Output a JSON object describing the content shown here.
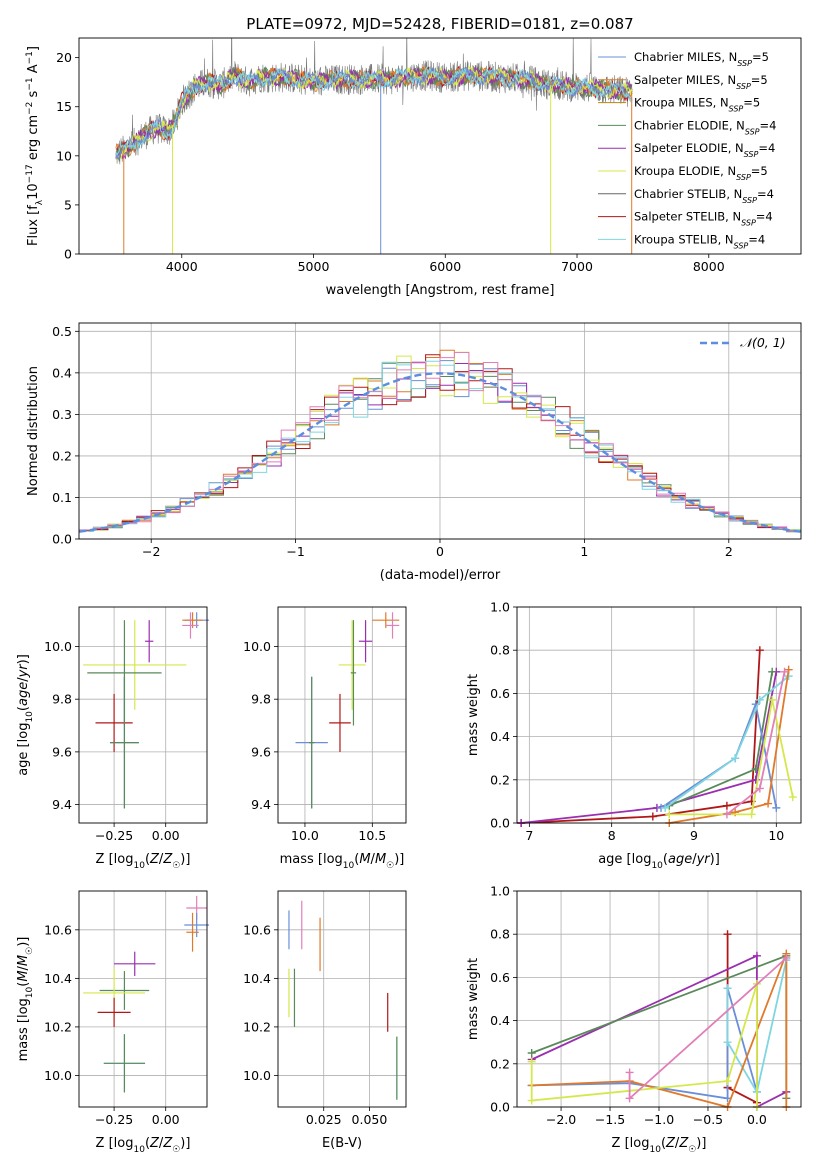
{
  "figure_title": "PLATE=0972, MJD=52428, FIBERID=0181, z=0.087",
  "colors": {
    "Chabrier MILES": "#6a8fd8",
    "Salpeter MILES": "#e07a2a",
    "Kroupa MILES": "#b8860b",
    "Chabrier ELODIE": "#5a8a5a",
    "Salpeter ELODIE": "#9a2fb0",
    "Kroupa ELODIE": "#d4e84a",
    "Chabrier STELIB": "#666666",
    "Salpeter STELIB": "#b01818",
    "Kroupa STELIB": "#7fd6e0",
    "pink": "#e07fb8",
    "gauss": "#5b8fde"
  },
  "chart_data": [
    {
      "id": "spectrum",
      "type": "line",
      "xlabel": "wavelength [Angstrom, rest frame]",
      "ylabel": "Flux [f_λ10^-17 erg cm^-2 s^-1 A^-1]",
      "xlim": [
        3220,
        8700
      ],
      "ylim": [
        0,
        22
      ],
      "xticks": [
        4000,
        5000,
        6000,
        7000,
        8000
      ],
      "yticks": [
        0,
        5,
        10,
        15,
        20
      ],
      "grid": false,
      "legend": "upper right",
      "legend_entries": [
        {
          "label": "Chabrier MILES, N",
          "sub": "SSP",
          "tail": "=5",
          "color": "#6a8fd8"
        },
        {
          "label": "Salpeter MILES, N",
          "sub": "SSP",
          "tail": "=5",
          "color": "#e07a2a"
        },
        {
          "label": "Kroupa MILES, N",
          "sub": "SSP",
          "tail": "=5",
          "color": "#b8860b"
        },
        {
          "label": "Chabrier ELODIE, N",
          "sub": "SSP",
          "tail": "=4",
          "color": "#5a8a5a"
        },
        {
          "label": "Salpeter ELODIE, N",
          "sub": "SSP",
          "tail": "=4",
          "color": "#9a2fb0"
        },
        {
          "label": "Kroupa ELODIE, N",
          "sub": "SSP",
          "tail": "=5",
          "color": "#d4e84a"
        },
        {
          "label": "Chabrier STELIB, N",
          "sub": "SSP",
          "tail": "=4",
          "color": "#666666"
        },
        {
          "label": "Salpeter STELIB, N",
          "sub": "SSP",
          "tail": "=4",
          "color": "#b01818"
        },
        {
          "label": "Kroupa STELIB, N",
          "sub": "SSP",
          "tail": "=4",
          "color": "#7fd6e0"
        }
      ],
      "continuum": {
        "x": [
          3500,
          3550,
          3600,
          3700,
          3800,
          3900,
          3950,
          4000,
          4100,
          4200,
          4300,
          4400,
          4500,
          4600,
          4800,
          5000,
          5200,
          5400,
          5600,
          5800,
          6000,
          6200,
          6400,
          6600,
          6800,
          7000,
          7200,
          7400
        ],
        "y": [
          10.2,
          10.5,
          10.8,
          12.0,
          12.8,
          12.5,
          13.5,
          15.5,
          17.0,
          17.5,
          17.2,
          18.2,
          17.5,
          18.0,
          18.0,
          17.5,
          17.8,
          17.8,
          17.8,
          18.2,
          18.0,
          18.2,
          18.0,
          17.8,
          17.2,
          17.0,
          16.8,
          16.5
        ]
      }
    },
    {
      "id": "residuals",
      "type": "step",
      "xlabel": "(data-model)/error",
      "ylabel": "Normed distribution",
      "xlim": [
        -2.5,
        2.5
      ],
      "ylim": [
        0,
        0.52
      ],
      "xticks": [
        -2,
        -1,
        0,
        1,
        2
      ],
      "xtick_labels": [
        "−2",
        "−1",
        "0",
        "1",
        "2"
      ],
      "yticks": [
        0,
        0.1,
        0.2,
        0.3,
        0.4,
        0.5
      ],
      "ytick_labels": [
        "0.0",
        "0.1",
        "0.2",
        "0.3",
        "0.4",
        "0.5"
      ],
      "grid": true,
      "legend": "upper right",
      "legend_label": "𝒩(0, 1)",
      "bin_width": 0.1
    },
    {
      "id": "age_vs_Z",
      "type": "errorbar",
      "xlabel": "Z [log10(Z/Z☉)]",
      "ylabel": "age  [log10(age/yr)]",
      "xlim": [
        -0.42,
        0.2
      ],
      "ylim": [
        9.33,
        10.15
      ],
      "xticks": [
        -0.25,
        0.0
      ],
      "xtick_labels": [
        "−0.25",
        "0.00"
      ],
      "yticks": [
        9.4,
        9.6,
        9.8,
        10.0
      ],
      "ytick_labels": [
        "9.4",
        "9.6",
        "9.8",
        "10.0"
      ],
      "grid": true,
      "points": [
        {
          "x": 0.15,
          "xe": 0.06,
          "y": 10.1,
          "ye": 0.03,
          "color": "#6a8fd8"
        },
        {
          "x": 0.13,
          "xe": 0.05,
          "y": 10.1,
          "ye": 0.03,
          "color": "#e07a2a"
        },
        {
          "x": 0.12,
          "xe": 0.04,
          "y": 10.08,
          "ye": 0.05,
          "color": "#e07fb8"
        },
        {
          "x": -0.08,
          "xe": 0.02,
          "y": 10.02,
          "ye": 0.08,
          "color": "#9a2fb0"
        },
        {
          "x": -0.15,
          "xe": 0.25,
          "y": 9.93,
          "ye": 0.17,
          "color": "#d4e84a"
        },
        {
          "x": -0.2,
          "xe": 0.18,
          "y": 9.9,
          "ye": 0.2,
          "color": "#5a8a5a"
        },
        {
          "x": -0.25,
          "xe": 0.09,
          "y": 9.71,
          "ye": 0.11,
          "color": "#b01818"
        },
        {
          "x": -0.2,
          "xe": 0.07,
          "y": 9.635,
          "ye": 0.25,
          "color": "#6a8fd8"
        },
        {
          "x": -0.2,
          "xe": 0.07,
          "y": 9.635,
          "ye": 0.25,
          "color": "#5a8a5a"
        }
      ]
    },
    {
      "id": "age_vs_mass",
      "type": "errorbar",
      "xlabel": "mass [log10(M/M☉)]",
      "ylabel": "",
      "xlim": [
        9.8,
        10.75
      ],
      "ylim": [
        9.33,
        10.15
      ],
      "xticks": [
        10.0,
        10.5
      ],
      "xtick_labels": [
        "10.0",
        "10.5"
      ],
      "yticks": [
        9.4,
        9.6,
        9.8,
        10.0
      ],
      "ytick_labels": [
        "9.4",
        "9.6",
        "9.8",
        "10.0"
      ],
      "grid": true,
      "points": [
        {
          "x": 10.6,
          "xe": 0.1,
          "y": 10.1,
          "ye": 0.03,
          "color": "#e07a2a"
        },
        {
          "x": 10.65,
          "xe": 0.05,
          "y": 10.08,
          "ye": 0.05,
          "color": "#e07fb8"
        },
        {
          "x": 10.45,
          "xe": 0.05,
          "y": 10.02,
          "ye": 0.08,
          "color": "#9a2fb0"
        },
        {
          "x": 10.35,
          "xe": 0.1,
          "y": 9.93,
          "ye": 0.17,
          "color": "#d4e84a"
        },
        {
          "x": 10.36,
          "xe": 0.02,
          "y": 9.9,
          "ye": 0.2,
          "color": "#5a8a5a"
        },
        {
          "x": 10.26,
          "xe": 0.08,
          "y": 9.71,
          "ye": 0.11,
          "color": "#b01818"
        },
        {
          "x": 10.05,
          "xe": 0.12,
          "y": 9.635,
          "ye": 0.25,
          "color": "#6a8fd8"
        },
        {
          "x": 10.05,
          "xe": 0.02,
          "y": 9.635,
          "ye": 0.25,
          "color": "#5a8a5a"
        }
      ]
    },
    {
      "id": "weight_vs_age",
      "type": "line",
      "xlabel": "age  [log10(age/yr)]",
      "ylabel": "mass weight",
      "xlim": [
        6.85,
        10.3
      ],
      "ylim": [
        0,
        1.0
      ],
      "xticks": [
        7,
        8,
        9,
        10
      ],
      "yticks": [
        0,
        0.2,
        0.4,
        0.6,
        0.8,
        1.0
      ],
      "ytick_labels": [
        "0.0",
        "0.2",
        "0.4",
        "0.6",
        "0.8",
        "1.0"
      ],
      "grid": true,
      "series": [
        {
          "color": "#b01818",
          "x": [
            6.9,
            8.5,
            9.4,
            9.7,
            9.8
          ],
          "y": [
            0.0,
            0.03,
            0.08,
            0.1,
            0.8
          ]
        },
        {
          "color": "#9a2fb0",
          "x": [
            6.9,
            8.55,
            9.75,
            10.0
          ],
          "y": [
            0.0,
            0.07,
            0.2,
            0.7
          ]
        },
        {
          "color": "#5a8a5a",
          "x": [
            8.7,
            9.75,
            9.95
          ],
          "y": [
            0.08,
            0.25,
            0.7
          ]
        },
        {
          "color": "#6a8fd8",
          "x": [
            8.6,
            9.5,
            9.75,
            10.0
          ],
          "y": [
            0.07,
            0.3,
            0.55,
            0.07
          ]
        },
        {
          "color": "#7fd6e0",
          "x": [
            8.65,
            9.5,
            9.8,
            10.15
          ],
          "y": [
            0.07,
            0.3,
            0.57,
            0.68
          ]
        },
        {
          "color": "#e07a2a",
          "x": [
            8.7,
            9.5,
            9.9,
            10.15
          ],
          "y": [
            0.0,
            0.05,
            0.09,
            0.71
          ]
        },
        {
          "color": "#d4e84a",
          "x": [
            8.7,
            9.7,
            9.95,
            10.2
          ],
          "y": [
            0.04,
            0.04,
            0.57,
            0.12
          ]
        },
        {
          "color": "#e07fb8",
          "x": [
            9.4,
            9.8,
            10.1
          ],
          "y": [
            0.04,
            0.16,
            0.7
          ]
        }
      ]
    },
    {
      "id": "mass_vs_Z",
      "type": "errorbar",
      "xlabel": "Z [log10(Z/Z☉)]",
      "ylabel": "mass [log10(M/M☉)]",
      "xlim": [
        -0.42,
        0.2
      ],
      "ylim": [
        9.87,
        10.76
      ],
      "xticks": [
        -0.25,
        0.0
      ],
      "xtick_labels": [
        "−0.25",
        "0.00"
      ],
      "yticks": [
        10.0,
        10.2,
        10.4,
        10.6
      ],
      "ytick_labels": [
        "10.0",
        "10.2",
        "10.4",
        "10.6"
      ],
      "grid": true,
      "points": [
        {
          "x": 0.15,
          "xe": 0.05,
          "y": 10.69,
          "ye": 0.05,
          "color": "#e07fb8"
        },
        {
          "x": 0.15,
          "xe": 0.06,
          "y": 10.62,
          "ye": 0.05,
          "color": "#6a8fd8"
        },
        {
          "x": 0.13,
          "xe": 0.03,
          "y": 10.59,
          "ye": 0.08,
          "color": "#e07a2a"
        },
        {
          "x": -0.15,
          "xe": 0.1,
          "y": 10.46,
          "ye": 0.05,
          "color": "#9a2fb0"
        },
        {
          "x": -0.2,
          "xe": 0.12,
          "y": 10.35,
          "ye": 0.08,
          "color": "#5a8a5a"
        },
        {
          "x": -0.25,
          "xe": 0.15,
          "y": 10.34,
          "ye": 0.1,
          "color": "#d4e84a"
        },
        {
          "x": -0.25,
          "xe": 0.08,
          "y": 10.26,
          "ye": 0.06,
          "color": "#b01818"
        },
        {
          "x": -0.2,
          "xe": 0.1,
          "y": 10.05,
          "ye": 0.12,
          "color": "#7fd6e0"
        },
        {
          "x": -0.2,
          "xe": 0.1,
          "y": 10.05,
          "ye": 0.12,
          "color": "#5a8a5a"
        }
      ]
    },
    {
      "id": "mass_vs_EBV",
      "type": "errorbar",
      "xlabel": "E(B-V)",
      "ylabel": "",
      "xlim": [
        0.0,
        0.07
      ],
      "ylim": [
        9.87,
        10.76
      ],
      "xticks": [
        0.025,
        0.05
      ],
      "xtick_labels": [
        "0.025",
        "0.050"
      ],
      "yticks": [
        10.0,
        10.2,
        10.4,
        10.6
      ],
      "ytick_labels": [
        "10.0",
        "10.2",
        "10.4",
        "10.6"
      ],
      "grid": true,
      "points": [
        {
          "x": 0.006,
          "xe": 0.0,
          "y": 10.6,
          "ye": 0.08,
          "color": "#6a8fd8"
        },
        {
          "x": 0.013,
          "xe": 0.0,
          "y": 10.62,
          "ye": 0.1,
          "color": "#e07fb8"
        },
        {
          "x": 0.023,
          "xe": 0.0,
          "y": 10.54,
          "ye": 0.11,
          "color": "#e07a2a"
        },
        {
          "x": 0.006,
          "xe": 0.0,
          "y": 10.34,
          "ye": 0.1,
          "color": "#d4e84a"
        },
        {
          "x": 0.009,
          "xe": 0.0,
          "y": 10.32,
          "ye": 0.12,
          "color": "#5a8a5a"
        },
        {
          "x": 0.06,
          "xe": 0.0,
          "y": 10.26,
          "ye": 0.08,
          "color": "#b01818"
        },
        {
          "x": 0.065,
          "xe": 0.0,
          "y": 10.03,
          "ye": 0.13,
          "color": "#7fd6e0"
        },
        {
          "x": 0.065,
          "xe": 0.0,
          "y": 10.03,
          "ye": 0.13,
          "color": "#5a8a5a"
        }
      ]
    },
    {
      "id": "weight_vs_Z",
      "type": "line",
      "xlabel": "Z [log10(Z/Z☉)]",
      "ylabel": "mass weight",
      "xlim": [
        -2.45,
        0.45
      ],
      "ylim": [
        0,
        1.0
      ],
      "xticks": [
        -2.0,
        -1.5,
        -1.0,
        -0.5,
        0.0
      ],
      "xtick_labels": [
        "−2.0",
        "−1.5",
        "−1.0",
        "−0.5",
        "0.0"
      ],
      "yticks": [
        0,
        0.2,
        0.4,
        0.6,
        0.8,
        1.0
      ],
      "ytick_labels": [
        "0.0",
        "0.2",
        "0.4",
        "0.6",
        "0.8",
        "1.0"
      ],
      "grid": true,
      "series": [
        {
          "color": "#b01818",
          "x": [
            -0.3,
            -0.3,
            -0.3,
            0.0
          ],
          "y": [
            0.8,
            0.09,
            0.09,
            0.02
          ]
        },
        {
          "color": "#9a2fb0",
          "x": [
            -2.3,
            0.0,
            0.0,
            0.3
          ],
          "y": [
            0.22,
            0.7,
            0.0,
            0.07
          ]
        },
        {
          "color": "#5a8a5a",
          "x": [
            -2.3,
            0.3,
            0.3
          ],
          "y": [
            0.25,
            0.7,
            0.04
          ]
        },
        {
          "color": "#6a8fd8",
          "x": [
            -2.3,
            -1.3,
            -0.3,
            -0.3,
            0.0
          ],
          "y": [
            0.1,
            0.11,
            0.04,
            0.55,
            0.07
          ]
        },
        {
          "color": "#7fd6e0",
          "x": [
            -0.3,
            -0.3,
            0.0,
            0.3
          ],
          "y": [
            0.55,
            0.3,
            0.07,
            0.68
          ]
        },
        {
          "color": "#e07a2a",
          "x": [
            -2.3,
            -1.3,
            -0.3,
            0.3,
            0.3
          ],
          "y": [
            0.1,
            0.12,
            0.0,
            0.71,
            0.0
          ]
        },
        {
          "color": "#d4e84a",
          "x": [
            -2.3,
            -2.3,
            -0.3,
            0.0,
            0.0
          ],
          "y": [
            0.21,
            0.03,
            0.12,
            0.57,
            0.0
          ]
        },
        {
          "color": "#e07fb8",
          "x": [
            -1.3,
            -1.3,
            0.3
          ],
          "y": [
            0.16,
            0.04,
            0.69
          ]
        }
      ]
    }
  ]
}
